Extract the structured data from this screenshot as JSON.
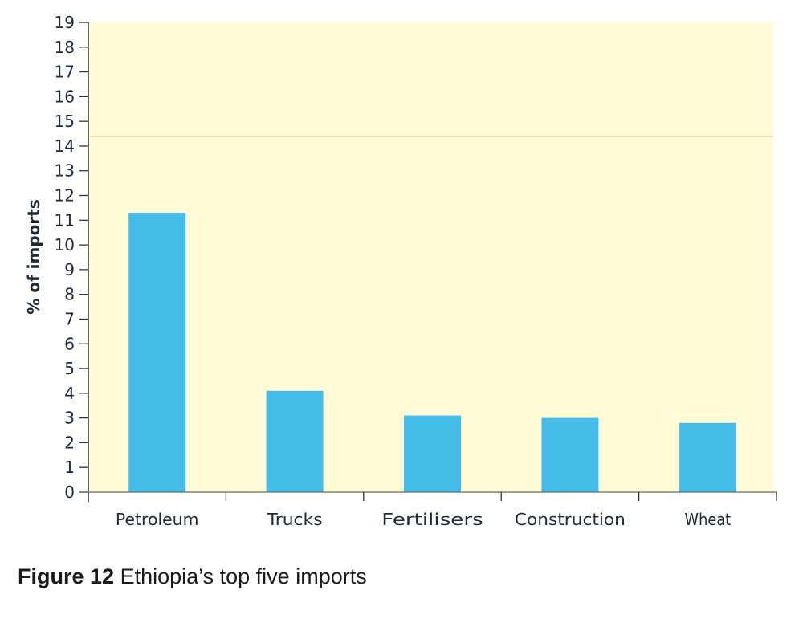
{
  "chart_data": {
    "type": "bar",
    "title": "Ethiopia's top five imports",
    "figure_label": "Figure 12",
    "xlabel": "",
    "ylabel": "% of imports",
    "categories": [
      "Petroleum",
      "Trucks",
      "Fertilisers",
      "Construction",
      "Wheat"
    ],
    "values": [
      11.3,
      4.1,
      3.1,
      3.0,
      2.8
    ],
    "ylim": [
      0,
      19
    ],
    "yticks": [
      0,
      1,
      2,
      3,
      4,
      5,
      6,
      7,
      8,
      9,
      10,
      11,
      12,
      13,
      14,
      15,
      16,
      17,
      18,
      19
    ],
    "grid": false,
    "legend": null
  },
  "caption": {
    "figure_label": "Figure 12",
    "text": "Ethiopia’s top five imports"
  },
  "colors": {
    "bar": "#45BDE8",
    "plot_background": "#FFFBD6",
    "axis": "#333333",
    "tick_label": "#1f2a36",
    "artifact_line": "#F6D7B0"
  }
}
